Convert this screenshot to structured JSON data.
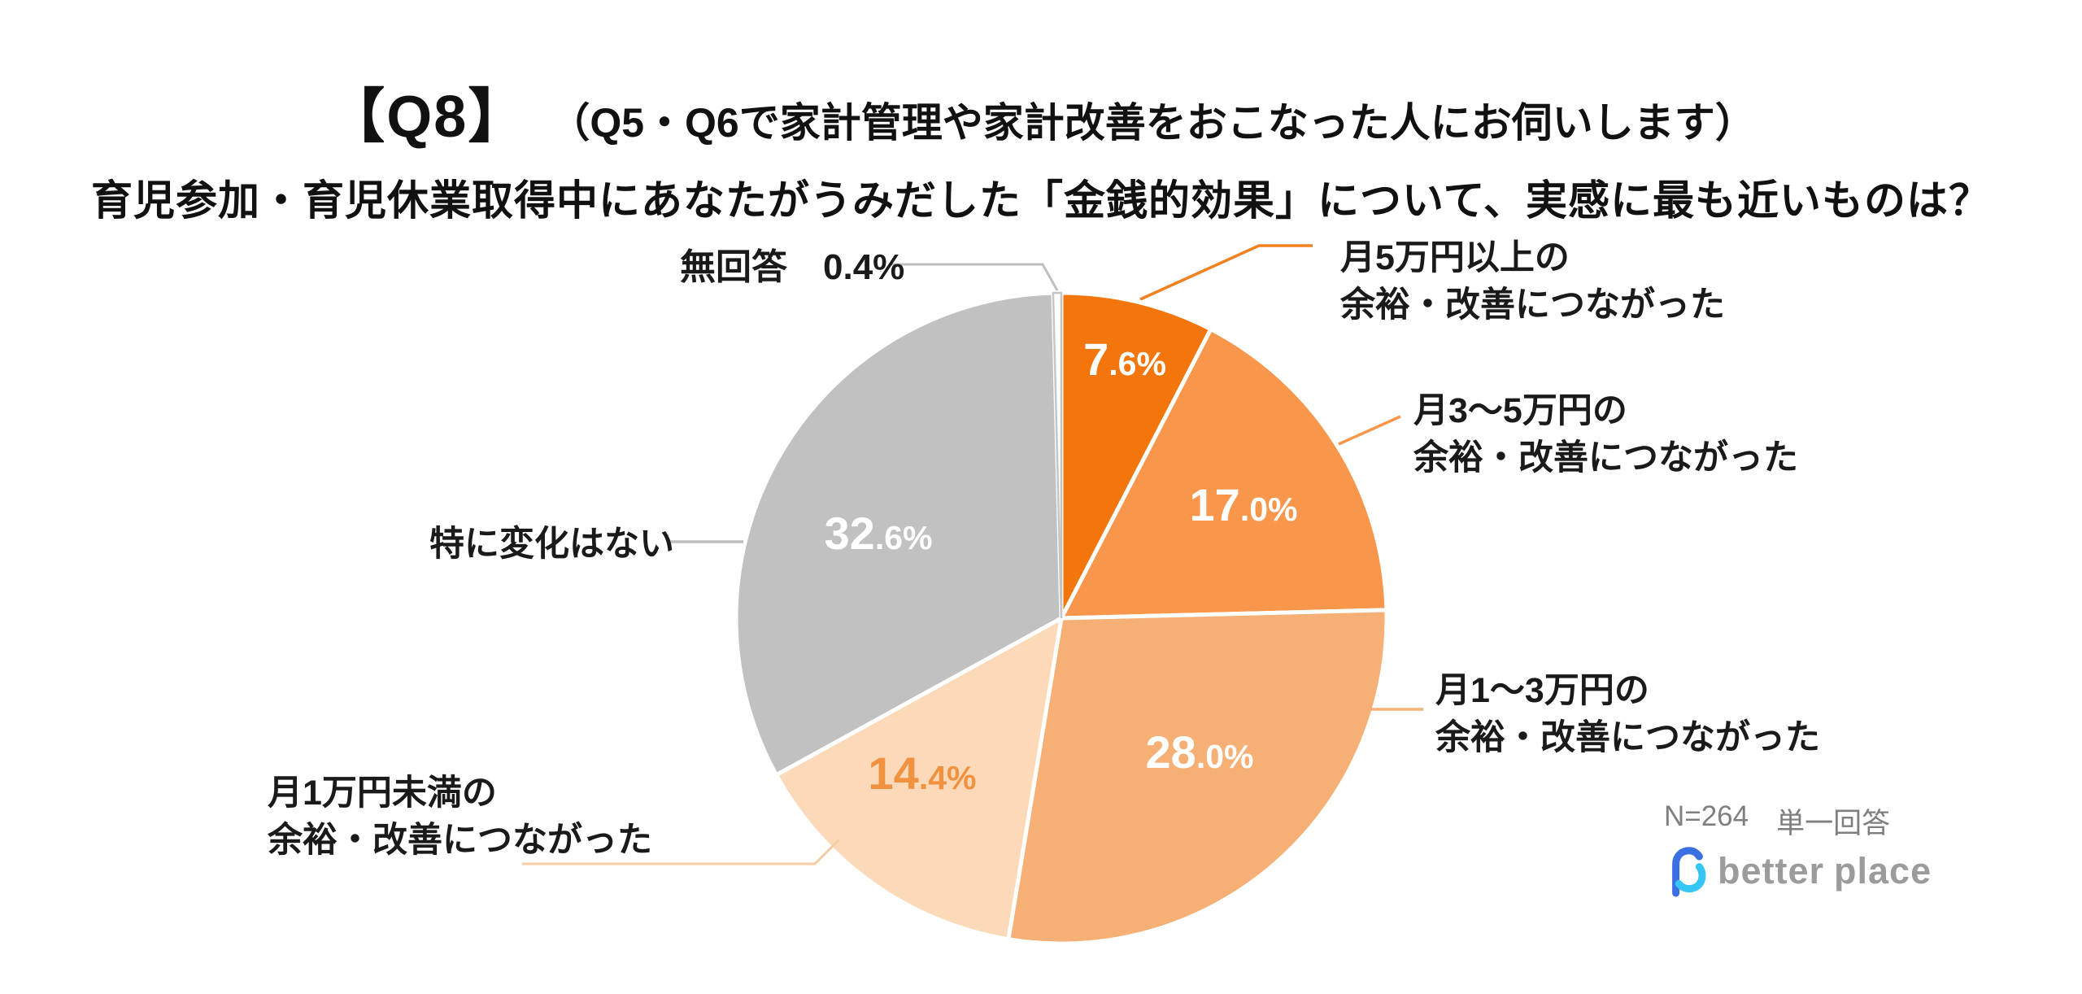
{
  "title": {
    "q_tag": "【Q8】",
    "q_condition": "（Q5・Q6で家計管理や家計改善をおこなった人にお伺いします）",
    "q_main": "育児参加・育児休業取得中にあなたがうみだした「金銭的効果」について、実感に最も近いものは？"
  },
  "chart_data": {
    "type": "pie",
    "title": "【Q8】育児参加・育児休業取得中にあなたがうみだした「金銭的効果」について、実感に最も近いものは？",
    "sample_size": 264,
    "answer_type": "単一回答",
    "start_angle_deg": 0,
    "direction": "clockwise",
    "slices": [
      {
        "id": "over5",
        "label": "月5万円以上の余裕・改善につながった",
        "value": 7.6,
        "color": "#F2760B",
        "value_color": "#FFFFFF"
      },
      {
        "id": "m3to5",
        "label": "月3～5万円の余裕・改善につながった",
        "value": 17.0,
        "color": "#F8964B",
        "value_color": "#FFFFFF"
      },
      {
        "id": "m1to3",
        "label": "月1～3万円の余裕・改善につながった",
        "value": 28.0,
        "color": "#F6AF74",
        "value_color": "#FFFFFF"
      },
      {
        "id": "under1",
        "label": "月1万円未満の余裕・改善につながった",
        "value": 14.4,
        "color": "#FCD9B8",
        "value_color": "#F0923F"
      },
      {
        "id": "nochange",
        "label": "特に変化はない",
        "value": 32.6,
        "color": "#C1C1C1",
        "value_color": "#FFFFFF"
      },
      {
        "id": "noanswer",
        "label": "無回答",
        "value": 0.4,
        "color": "#FFFFFF",
        "stroke": "#C6C6C6",
        "show_value": false
      }
    ]
  },
  "callouts": {
    "over5": {
      "line1": "月5万円以上の",
      "line2": "余裕・改善につながった"
    },
    "m3to5": {
      "line1": "月3～5万円の",
      "line2": "余裕・改善につながった"
    },
    "m1to3": {
      "line1": "月1～3万円の",
      "line2": "余裕・改善につながった"
    },
    "under1": {
      "line1": "月1万円未満の",
      "line2": "余裕・改善につながった"
    },
    "nochange": {
      "line1": "特に変化はない"
    },
    "noanswer": {
      "label": "無回答",
      "value_text": "0.4%"
    }
  },
  "footer": {
    "sample": "N=264",
    "answer_type": "単一回答",
    "logo_word1": "better",
    "logo_word2": "place"
  }
}
